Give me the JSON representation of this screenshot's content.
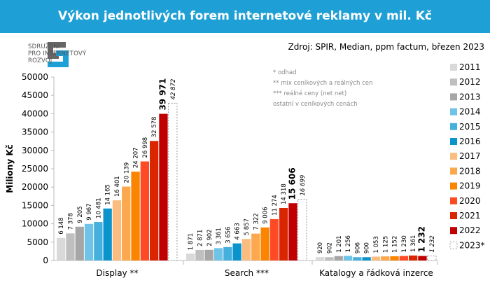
{
  "header": {
    "title": "Výkon jednotlivých forem internetové reklamy v mil. Kč",
    "source": "Zdroj: SPIR, Median, ppm factum, březen 2023"
  },
  "logo": {
    "lines": [
      "SDRUŽENÍ",
      "PRO INTERNETOVÝ",
      "ROZVOJ"
    ]
  },
  "notes": [
    "* odhad",
    "** mix ceníkových a reálných cen",
    "*** reálné ceny (net net)",
    "ostatní v ceníkových cenách"
  ],
  "chart_data": {
    "type": "bar",
    "ylabel": "Miliony Kč",
    "ylim": [
      0,
      50000
    ],
    "yticks": [
      0,
      5000,
      10000,
      15000,
      20000,
      25000,
      30000,
      35000,
      40000,
      45000,
      50000
    ],
    "grid": false,
    "legend_position": "right",
    "categories": [
      "Display **",
      "Search ***",
      "Katalogy a řádková inzerce"
    ],
    "series": [
      {
        "name": "2011",
        "color": "#d9d9d9",
        "values": [
          6148,
          1871,
          920
        ],
        "labels": [
          "6 148",
          "1 871",
          "920"
        ]
      },
      {
        "name": "2012",
        "color": "#bfbfbf",
        "values": [
          7378,
          2871,
          902
        ],
        "labels": [
          "7 378",
          "2 871",
          "902"
        ]
      },
      {
        "name": "2013",
        "color": "#a6a6a6",
        "values": [
          9205,
          2902,
          1201
        ],
        "labels": [
          "9 205",
          "2 902",
          "1 201"
        ]
      },
      {
        "name": "2014",
        "color": "#6ec3e6",
        "values": [
          9967,
          3361,
          1256
        ],
        "labels": [
          "9 967",
          "3 361",
          "1 256"
        ]
      },
      {
        "name": "2015",
        "color": "#45b0dd",
        "values": [
          10481,
          3656,
          906
        ],
        "labels": [
          "10 481",
          "3 656",
          "906"
        ]
      },
      {
        "name": "2016",
        "color": "#0a94cb",
        "values": [
          14165,
          4663,
          900
        ],
        "labels": [
          "14 165",
          "4 663",
          "900"
        ]
      },
      {
        "name": "2017",
        "color": "#fbbc80",
        "values": [
          16401,
          5857,
          1053
        ],
        "labels": [
          "16 401",
          "5 857",
          "1 053"
        ]
      },
      {
        "name": "2018",
        "color": "#fca84f",
        "values": [
          20139,
          7322,
          1125
        ],
        "labels": [
          "20 139",
          "7 322",
          "1 125"
        ]
      },
      {
        "name": "2019",
        "color": "#fb8500",
        "values": [
          24207,
          9006,
          1152
        ],
        "labels": [
          "24 207",
          "9 006",
          "1 152"
        ]
      },
      {
        "name": "2020",
        "color": "#fe4b25",
        "values": [
          26998,
          11274,
          1230
        ],
        "labels": [
          "26 998",
          "11 274",
          "1 230"
        ]
      },
      {
        "name": "2021",
        "color": "#d92500",
        "values": [
          32578,
          14318,
          1361
        ],
        "labels": [
          "32 578",
          "14 318",
          "1 361"
        ]
      },
      {
        "name": "2022",
        "color": "#c00000",
        "values": [
          39971,
          15606,
          1232
        ],
        "labels": [
          "39 971",
          "15 606",
          "1 232"
        ],
        "bold": true
      },
      {
        "name": "2023*",
        "color": "dashed",
        "values": [
          42872,
          16699,
          1232
        ],
        "labels": [
          "42 872",
          "16 699",
          "1 232"
        ],
        "italic": true
      }
    ]
  }
}
